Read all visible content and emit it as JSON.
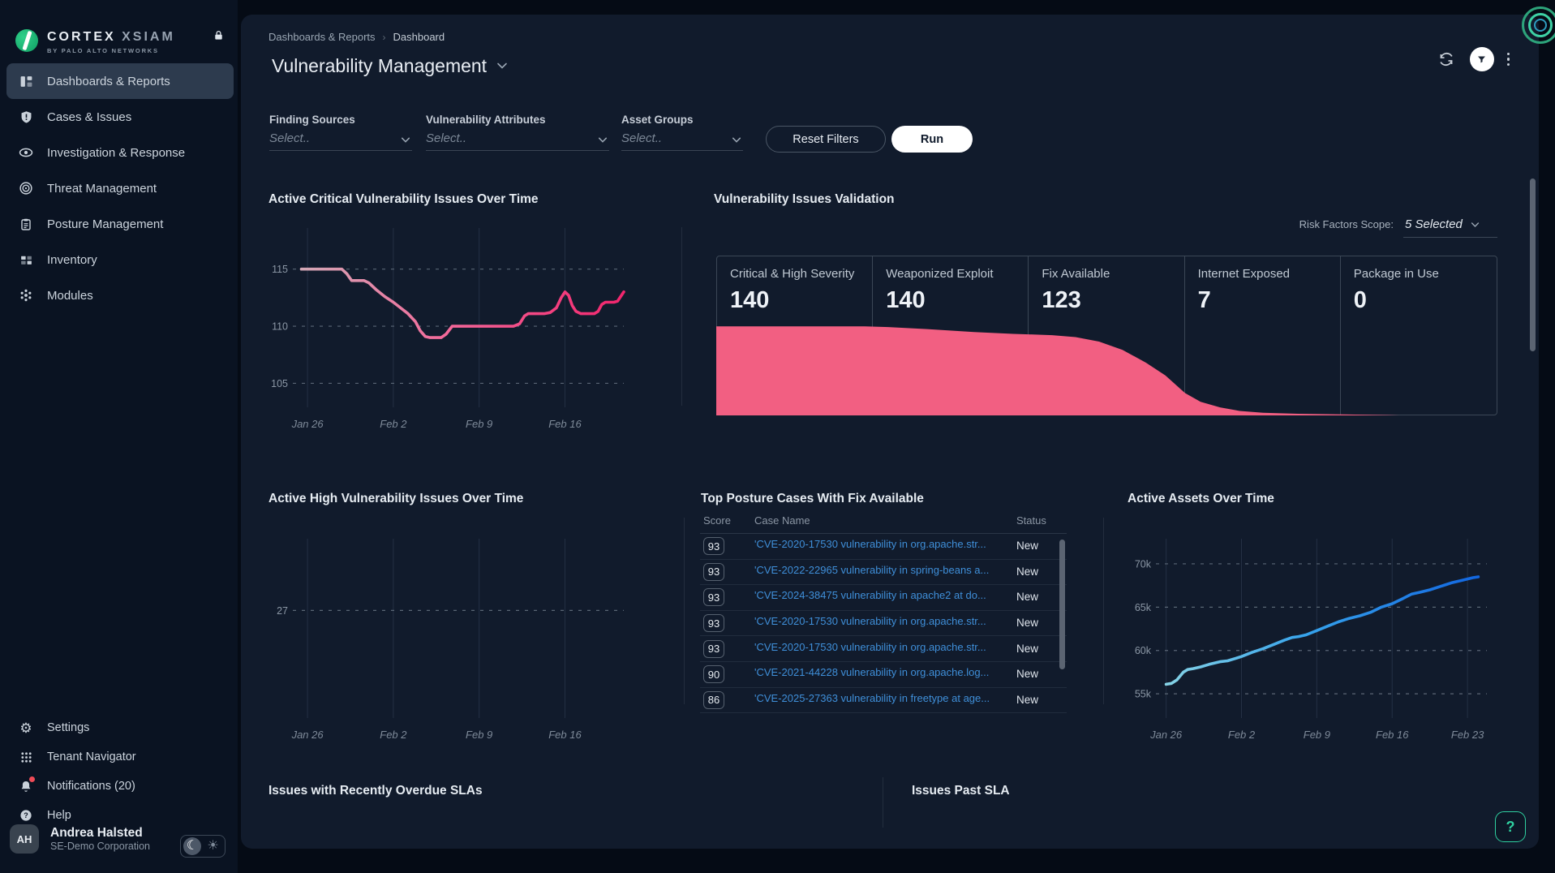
{
  "app": {
    "brand1": "CORTEX",
    "brand2": "XSIAM",
    "brand_sub": "BY PALO ALTO NETWORKS"
  },
  "sidebar": {
    "items": [
      {
        "label": "Dashboards & Reports",
        "icon": "dashboards",
        "active": true
      },
      {
        "label": "Cases & Issues",
        "icon": "cases",
        "active": false
      },
      {
        "label": "Investigation & Response",
        "icon": "investigation",
        "active": false
      },
      {
        "label": "Threat Management",
        "icon": "threat",
        "active": false
      },
      {
        "label": "Posture Management",
        "icon": "posture",
        "active": false
      },
      {
        "label": "Inventory",
        "icon": "inventory",
        "active": false
      },
      {
        "label": "Modules",
        "icon": "modules",
        "active": false
      }
    ],
    "footer_items": [
      {
        "label": "Settings",
        "icon": "settings",
        "dot": false
      },
      {
        "label": "Tenant Navigator",
        "icon": "tenant",
        "dot": false
      },
      {
        "label": "Notifications (20)",
        "icon": "bell",
        "dot": true
      },
      {
        "label": "Help",
        "icon": "help",
        "dot": false
      }
    ],
    "user": {
      "initials": "AH",
      "name": "Andrea Halsted",
      "org": "SE-Demo Corporation"
    }
  },
  "header": {
    "breadcrumb": [
      "Dashboards & Reports",
      "Dashboard"
    ],
    "title": "Vulnerability Management"
  },
  "filters": {
    "groups": [
      {
        "label": "Finding Sources",
        "placeholder": "Select.."
      },
      {
        "label": "Vulnerability Attributes",
        "placeholder": "Select.."
      },
      {
        "label": "Asset Groups",
        "placeholder": "Select.."
      }
    ],
    "reset_label": "Reset Filters",
    "run_label": "Run"
  },
  "chart_data": [
    {
      "id": "critical_over_time",
      "type": "line",
      "title": "Active Critical Vulnerability Issues Over Time",
      "x_ticks": [
        {
          "label": "Jan 26",
          "day": 0
        },
        {
          "label": "Feb 2",
          "day": 7
        },
        {
          "label": "Feb 9",
          "day": 14
        },
        {
          "label": "Feb 16",
          "day": 21
        }
      ],
      "y_ticks": [
        105,
        110,
        115
      ],
      "xlim": [
        -0.8,
        25.8
      ],
      "ylim": [
        102.9,
        118.6
      ],
      "points": [
        [
          -0.5,
          115
        ],
        [
          0,
          115
        ],
        [
          1,
          115
        ],
        [
          2,
          115
        ],
        [
          2.8,
          115
        ],
        [
          3.2,
          114.6
        ],
        [
          3.6,
          114
        ],
        [
          4.6,
          114
        ],
        [
          5,
          113.8
        ],
        [
          5.6,
          113.2
        ],
        [
          6.3,
          112.6
        ],
        [
          7,
          112.1
        ],
        [
          7.6,
          111.6
        ],
        [
          8.2,
          111.1
        ],
        [
          8.8,
          110.4
        ],
        [
          9.2,
          109.6
        ],
        [
          9.6,
          109.1
        ],
        [
          10,
          109
        ],
        [
          10.9,
          109
        ],
        [
          11.3,
          109.3
        ],
        [
          11.8,
          110
        ],
        [
          12.5,
          110
        ],
        [
          14,
          110
        ],
        [
          16,
          110
        ],
        [
          16.8,
          110
        ],
        [
          17.3,
          110.2
        ],
        [
          17.7,
          110.9
        ],
        [
          18,
          111.1
        ],
        [
          18.6,
          111.1
        ],
        [
          19.3,
          111.1
        ],
        [
          19.8,
          111.2
        ],
        [
          20.3,
          111.6
        ],
        [
          20.7,
          112.5
        ],
        [
          21,
          113
        ],
        [
          21.3,
          112.7
        ],
        [
          21.6,
          111.8
        ],
        [
          21.9,
          111.3
        ],
        [
          22.3,
          111.1
        ],
        [
          23.4,
          111.1
        ],
        [
          23.7,
          111.3
        ],
        [
          24,
          111.9
        ],
        [
          24.3,
          112.1
        ],
        [
          25,
          112.1
        ],
        [
          25.3,
          112.2
        ],
        [
          25.8,
          113
        ]
      ],
      "stroke_from": "#d3a8b6",
      "stroke_mid": "#f4699a",
      "stroke_to": "#f2256d"
    },
    {
      "id": "issues_validation",
      "type": "funnel",
      "title": "Vulnerability Issues Validation",
      "scope_label": "Risk Factors Scope:",
      "scope_value": "5 Selected",
      "columns": [
        {
          "label": "Critical & High Severity",
          "value": "140"
        },
        {
          "label": "Weaponized Exploit",
          "value": "140"
        },
        {
          "label": "Fix Available",
          "value": "123"
        },
        {
          "label": "Internet Exposed",
          "value": "7"
        },
        {
          "label": "Package in Use",
          "value": "0"
        }
      ],
      "profile": [
        [
          0,
          0.557
        ],
        [
          0.19,
          0.557
        ],
        [
          0.22,
          0.553
        ],
        [
          0.27,
          0.54
        ],
        [
          0.33,
          0.522
        ],
        [
          0.38,
          0.51
        ],
        [
          0.4,
          0.507
        ],
        [
          0.43,
          0.502
        ],
        [
          0.46,
          0.49
        ],
        [
          0.49,
          0.462
        ],
        [
          0.52,
          0.41
        ],
        [
          0.55,
          0.33
        ],
        [
          0.575,
          0.25
        ],
        [
          0.6,
          0.14
        ],
        [
          0.62,
          0.085
        ],
        [
          0.645,
          0.05
        ],
        [
          0.67,
          0.028
        ],
        [
          0.7,
          0.016
        ],
        [
          0.745,
          0.01
        ],
        [
          0.8,
          0.006
        ],
        [
          0.86,
          0.002
        ],
        [
          0.875,
          0
        ]
      ],
      "fill": "#f25f82"
    },
    {
      "id": "high_over_time",
      "type": "line",
      "title": "Active High Vulnerability Issues Over Time",
      "x_ticks": [
        {
          "label": "Jan 26",
          "day": 0
        },
        {
          "label": "Feb 2",
          "day": 7
        },
        {
          "label": "Feb 9",
          "day": 14
        },
        {
          "label": "Feb 16",
          "day": 21
        }
      ],
      "y_ticks": [
        27
      ],
      "xlim": [
        -0.8,
        25.8
      ],
      "ylim": [
        0,
        45
      ],
      "points": [],
      "stroke_from": "#d3a8b6",
      "stroke_mid": "#f4699a",
      "stroke_to": "#f2256d"
    },
    {
      "id": "assets_over_time",
      "type": "line",
      "title": "Active Assets Over Time",
      "x_ticks": [
        {
          "label": "Jan 26",
          "day": 0
        },
        {
          "label": "Feb 2",
          "day": 7
        },
        {
          "label": "Feb 9",
          "day": 14
        },
        {
          "label": "Feb 16",
          "day": 21
        },
        {
          "label": "Feb 23",
          "day": 28
        }
      ],
      "y_ticks": [
        {
          "v": 55,
          "label": "55k"
        },
        {
          "v": 60,
          "label": "60k"
        },
        {
          "v": 65,
          "label": "65k"
        },
        {
          "v": 70,
          "label": "70k"
        }
      ],
      "xlim": [
        -0.5,
        29.8
      ],
      "ylim": [
        52.2,
        72.9
      ],
      "points": [
        [
          0,
          56.1
        ],
        [
          0.5,
          56.2
        ],
        [
          1,
          56.6
        ],
        [
          1.6,
          57.5
        ],
        [
          2,
          57.8
        ],
        [
          2.5,
          57.9
        ],
        [
          3.2,
          58.1
        ],
        [
          4,
          58.4
        ],
        [
          5,
          58.7
        ],
        [
          5.7,
          58.8
        ],
        [
          6.5,
          59.1
        ],
        [
          7,
          59.3
        ],
        [
          8,
          59.8
        ],
        [
          9,
          60.2
        ],
        [
          10,
          60.7
        ],
        [
          11,
          61.2
        ],
        [
          11.7,
          61.5
        ],
        [
          12.3,
          61.6
        ],
        [
          13,
          61.8
        ],
        [
          14,
          62.3
        ],
        [
          15,
          62.8
        ],
        [
          16,
          63.3
        ],
        [
          17,
          63.7
        ],
        [
          18,
          64.0
        ],
        [
          19,
          64.4
        ],
        [
          20,
          65.0
        ],
        [
          21,
          65.4
        ],
        [
          22,
          66.0
        ],
        [
          22.8,
          66.5
        ],
        [
          23.5,
          66.7
        ],
        [
          24.5,
          67.0
        ],
        [
          25.5,
          67.4
        ],
        [
          26.5,
          67.8
        ],
        [
          27.5,
          68.1
        ],
        [
          28.5,
          68.4
        ],
        [
          29,
          68.5
        ]
      ],
      "stroke_from": "#86d3e6",
      "stroke_mid": "#36a3ec",
      "stroke_to": "#1266e0"
    }
  ],
  "table": {
    "title": "Top Posture Cases With Fix Available",
    "columns": [
      "Score",
      "Case Name",
      "Status"
    ],
    "rows": [
      {
        "score": "93",
        "name": "'CVE-2020-17530 vulnerability in org.apache.str...",
        "status": "New"
      },
      {
        "score": "93",
        "name": "'CVE-2022-22965 vulnerability in spring-beans a...",
        "status": "New"
      },
      {
        "score": "93",
        "name": "'CVE-2024-38475 vulnerability in apache2 at do...",
        "status": "New"
      },
      {
        "score": "93",
        "name": "'CVE-2020-17530 vulnerability in org.apache.str...",
        "status": "New"
      },
      {
        "score": "93",
        "name": "'CVE-2020-17530 vulnerability in org.apache.str...",
        "status": "New"
      },
      {
        "score": "90",
        "name": "'CVE-2021-44228 vulnerability in org.apache.log...",
        "status": "New"
      },
      {
        "score": "86",
        "name": "'CVE-2025-27363 vulnerability in freetype at age...",
        "status": "New"
      }
    ]
  },
  "bottom": {
    "left_title": "Issues with Recently Overdue SLAs",
    "right_title": "Issues Past SLA"
  },
  "help": {
    "label": "?"
  }
}
